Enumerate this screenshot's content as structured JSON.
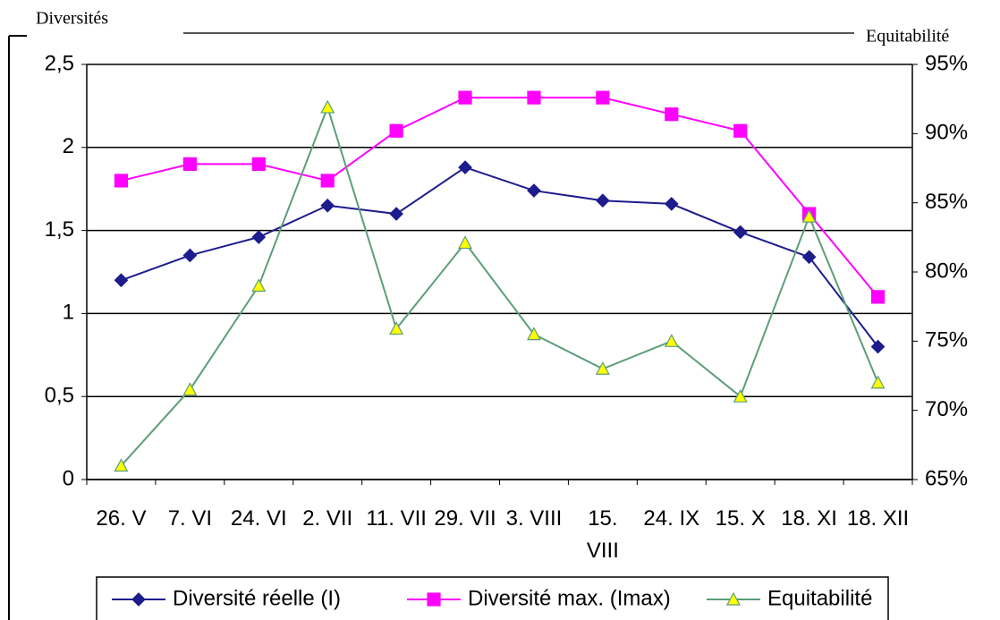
{
  "chart_data": {
    "type": "line",
    "y_title": "Diversités",
    "y2_title": "Equitabilité",
    "categories": [
      "26. V",
      "7. VI",
      "24. VI",
      "2. VII",
      "11. VII",
      "29. VII",
      "3. VIII",
      "15. VIII",
      "24. IX",
      "15. X",
      "18. XI",
      "18. XII"
    ],
    "series": [
      {
        "name": "Diversité réelle (I)",
        "color": "#1c1c8c",
        "marker": "diamond",
        "values": [
          1.2,
          1.35,
          1.46,
          1.65,
          1.6,
          1.88,
          1.74,
          1.68,
          1.66,
          1.49,
          1.34,
          0.8
        ]
      },
      {
        "name": "Diversité max. (Imax)",
        "color": "#ff00ff",
        "marker": "square",
        "values": [
          1.8,
          1.9,
          1.9,
          1.8,
          2.1,
          2.3,
          2.3,
          2.3,
          2.2,
          2.1,
          1.6,
          1.1
        ]
      },
      {
        "name": "Equitabilité",
        "color": "#5c9e78",
        "marker": "triangle",
        "marker_fill": "#ffff00",
        "axis": "y2",
        "values": [
          66.0,
          71.5,
          79.0,
          91.9,
          75.9,
          82.1,
          75.5,
          73.0,
          75.0,
          71.0,
          84.0,
          72.0
        ]
      }
    ],
    "ylim": [
      0,
      2.5
    ],
    "yticks": [
      0,
      {
        "value": 0.5,
        "label": "0,5"
      },
      1,
      {
        "value": 1.5,
        "label": "1,5"
      },
      2,
      {
        "value": 2.5,
        "label": "2,5"
      }
    ],
    "y2lim": [
      65,
      95
    ],
    "y2ticks": [
      {
        "value": 65,
        "label": "65%"
      },
      {
        "value": 70,
        "label": "70%"
      },
      {
        "value": 75,
        "label": "75%"
      },
      {
        "value": 80,
        "label": "80%"
      },
      {
        "value": 85,
        "label": "85%"
      },
      {
        "value": 90,
        "label": "90%"
      },
      {
        "value": 95,
        "label": "95%"
      }
    ],
    "grid": true,
    "legend": "bottom"
  }
}
